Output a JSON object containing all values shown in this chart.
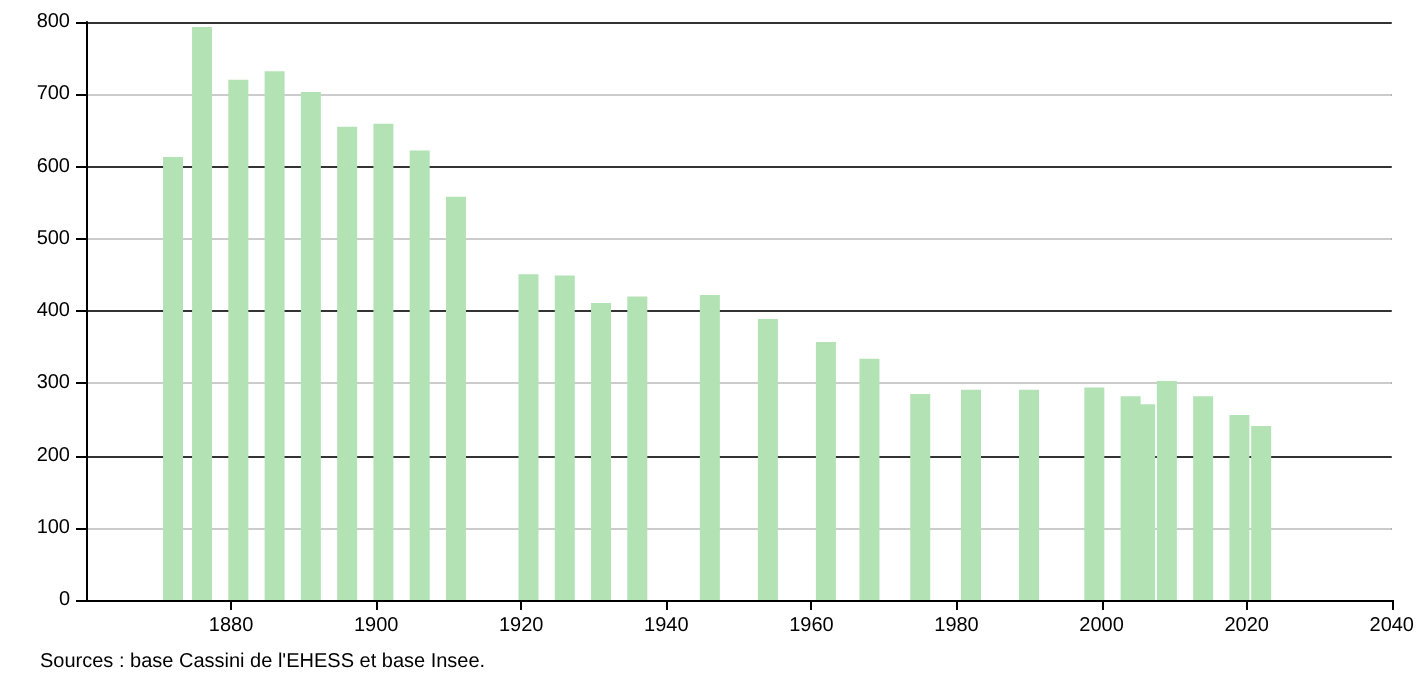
{
  "chart_data": {
    "type": "bar",
    "x": [
      1872,
      1876,
      1881,
      1886,
      1891,
      1896,
      1901,
      1906,
      1911,
      1921,
      1926,
      1931,
      1936,
      1946,
      1954,
      1962,
      1968,
      1975,
      1982,
      1990,
      1999,
      2004,
      2006,
      2009,
      2014,
      2019,
      2022
    ],
    "values": [
      613,
      793,
      720,
      732,
      703,
      655,
      659,
      622,
      558,
      451,
      449,
      411,
      420,
      422,
      389,
      357,
      334,
      285,
      291,
      291,
      294,
      282,
      271,
      303,
      282,
      256,
      241
    ],
    "color": "#b3e3b5",
    "xlim": [
      1860,
      2040
    ],
    "xticks": [
      1880,
      1900,
      1920,
      1940,
      1960,
      1980,
      2000,
      2020,
      2040
    ],
    "ylim": [
      0,
      800
    ],
    "yticks": [
      0,
      100,
      200,
      300,
      400,
      500,
      600,
      700,
      800
    ],
    "grid": "y",
    "annotations": [
      "Sources : base Cassini de l'EHESS et base Insee."
    ]
  }
}
